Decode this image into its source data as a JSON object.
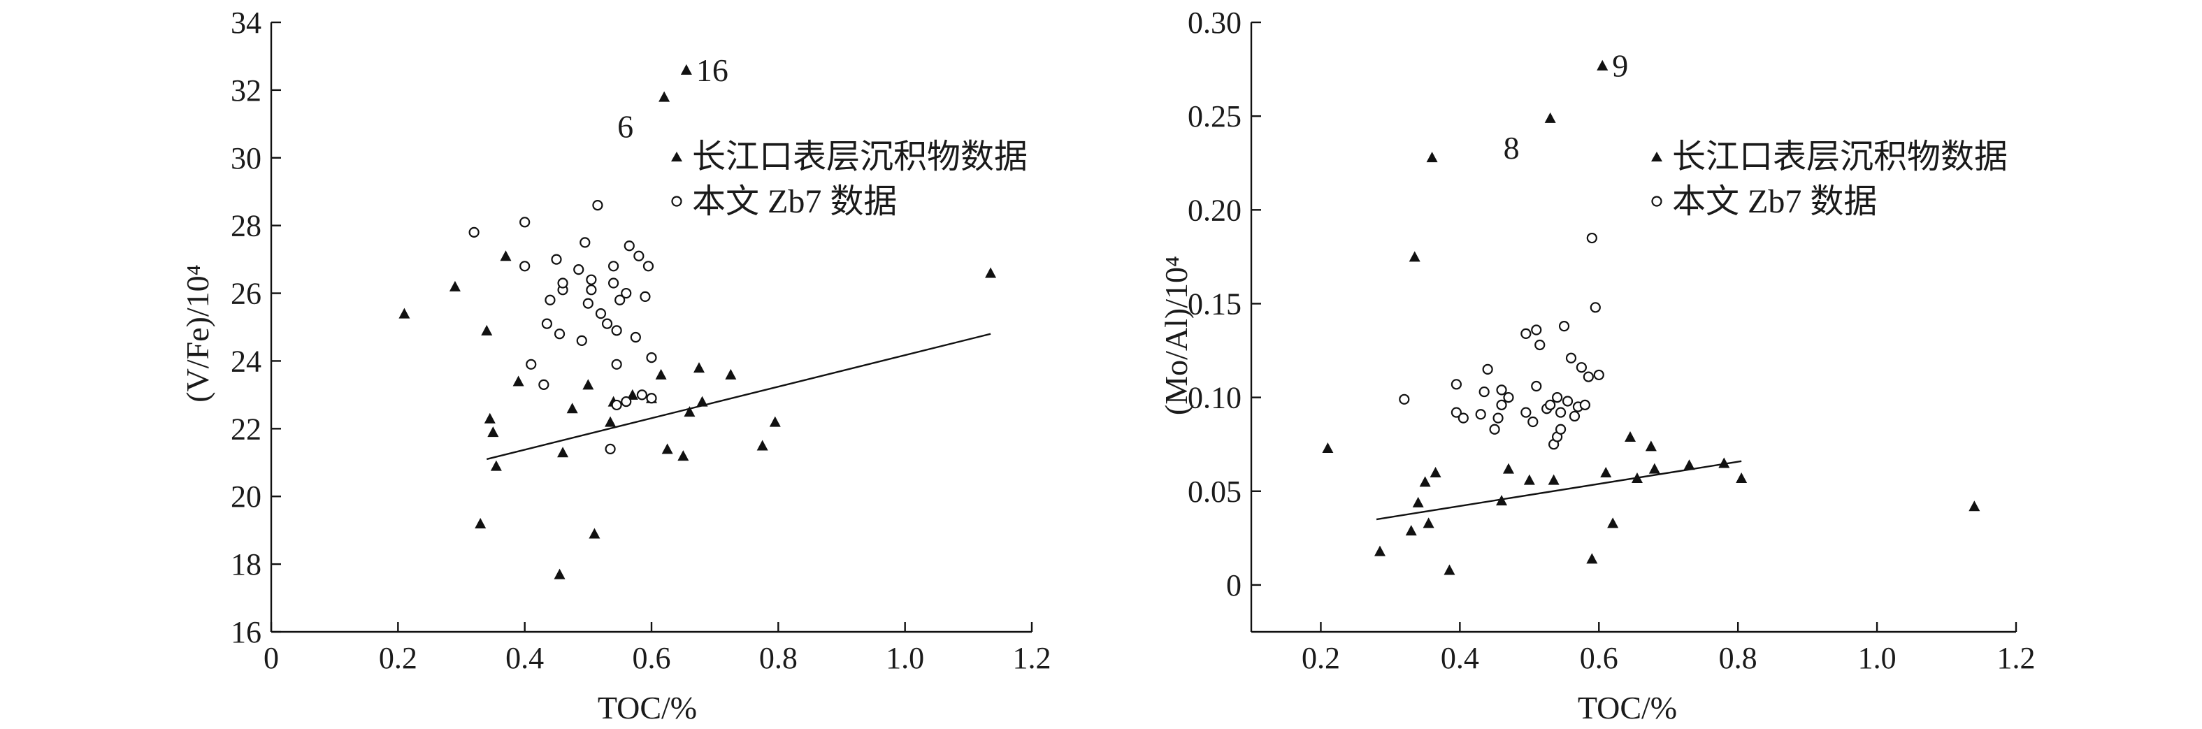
{
  "chart_data": [
    {
      "type": "scatter",
      "xlabel": "TOC/%",
      "ylabel": "(V/Fe)/10⁴",
      "xlim": [
        0,
        1.2
      ],
      "ylim": [
        16,
        34
      ],
      "xticks": [
        "0",
        "0.2",
        "0.4",
        "0.6",
        "0.8",
        "1.0",
        "1.2"
      ],
      "yticks": [
        "16",
        "18",
        "20",
        "22",
        "24",
        "26",
        "28",
        "30",
        "32",
        "34"
      ],
      "legend_position": "upper-right",
      "series": [
        {
          "name": "长江口表层沉积物数据",
          "marker": "filled-triangle",
          "points": [
            [
              0.21,
              25.4
            ],
            [
              0.29,
              26.2
            ],
            [
              0.33,
              19.2
            ],
            [
              0.34,
              24.9
            ],
            [
              0.345,
              22.3
            ],
            [
              0.35,
              21.9
            ],
            [
              0.355,
              20.9
            ],
            [
              0.37,
              27.1
            ],
            [
              0.39,
              23.4
            ],
            [
              0.455,
              17.7
            ],
            [
              0.46,
              21.3
            ],
            [
              0.475,
              22.6
            ],
            [
              0.5,
              23.3
            ],
            [
              0.51,
              18.9
            ],
            [
              0.535,
              22.2
            ],
            [
              0.54,
              22.8
            ],
            [
              0.57,
              23.0
            ],
            [
              0.6,
              22.9
            ],
            [
              0.615,
              23.6
            ],
            [
              0.62,
              31.8
            ],
            [
              0.625,
              21.4
            ],
            [
              0.65,
              21.2
            ],
            [
              0.655,
              32.6
            ],
            [
              0.66,
              22.5
            ],
            [
              0.675,
              23.8
            ],
            [
              0.68,
              22.8
            ],
            [
              0.725,
              23.6
            ],
            [
              0.775,
              21.5
            ],
            [
              0.795,
              22.2
            ],
            [
              1.135,
              26.6
            ]
          ]
        },
        {
          "name": "本文 Zb7 数据",
          "marker": "open-circle",
          "points": [
            [
              0.32,
              27.8
            ],
            [
              0.4,
              28.1
            ],
            [
              0.4,
              26.8
            ],
            [
              0.41,
              23.9
            ],
            [
              0.43,
              23.3
            ],
            [
              0.435,
              25.1
            ],
            [
              0.44,
              25.8
            ],
            [
              0.45,
              27.0
            ],
            [
              0.455,
              24.8
            ],
            [
              0.46,
              26.1
            ],
            [
              0.46,
              26.3
            ],
            [
              0.485,
              26.7
            ],
            [
              0.49,
              24.6
            ],
            [
              0.495,
              27.5
            ],
            [
              0.5,
              25.7
            ],
            [
              0.505,
              26.1
            ],
            [
              0.505,
              26.4
            ],
            [
              0.515,
              28.6
            ],
            [
              0.52,
              25.4
            ],
            [
              0.53,
              25.1
            ],
            [
              0.535,
              21.4
            ],
            [
              0.54,
              26.8
            ],
            [
              0.54,
              26.3
            ],
            [
              0.545,
              22.7
            ],
            [
              0.545,
              23.9
            ],
            [
              0.545,
              24.9
            ],
            [
              0.55,
              25.8
            ],
            [
              0.56,
              26.0
            ],
            [
              0.56,
              22.8
            ],
            [
              0.565,
              27.4
            ],
            [
              0.575,
              24.7
            ],
            [
              0.58,
              27.1
            ],
            [
              0.585,
              23.0
            ],
            [
              0.59,
              25.9
            ],
            [
              0.595,
              26.8
            ],
            [
              0.6,
              24.1
            ],
            [
              0.6,
              22.9
            ]
          ]
        }
      ],
      "trendline": {
        "x": [
          0.34,
          1.135
        ],
        "y": [
          21.1,
          24.8
        ]
      },
      "annotations": [
        {
          "text": "16",
          "x": 0.655,
          "y": 32.6
        },
        {
          "text": "6",
          "x": 0.62,
          "y": 31.8
        }
      ]
    },
    {
      "type": "scatter",
      "xlabel": "TOC/%",
      "ylabel": "(Mo/Al)/10⁴",
      "xlim": [
        0.1,
        1.2
      ],
      "ylim": [
        -0.025,
        0.3
      ],
      "xticks": [
        "0.2",
        "0.4",
        "0.6",
        "0.8",
        "1.0",
        "1.2"
      ],
      "yticks": [
        "0",
        "0.05",
        "0.10",
        "0.15",
        "0.20",
        "0.25",
        "0.30"
      ],
      "legend_position": "upper-right",
      "series": [
        {
          "name": "长江口表层沉积物数据",
          "marker": "filled-triangle",
          "points": [
            [
              0.21,
              0.073
            ],
            [
              0.285,
              0.018
            ],
            [
              0.33,
              0.029
            ],
            [
              0.335,
              0.175
            ],
            [
              0.34,
              0.044
            ],
            [
              0.35,
              0.055
            ],
            [
              0.355,
              0.033
            ],
            [
              0.36,
              0.228
            ],
            [
              0.365,
              0.06
            ],
            [
              0.385,
              0.008
            ],
            [
              0.46,
              0.045
            ],
            [
              0.47,
              0.062
            ],
            [
              0.5,
              0.056
            ],
            [
              0.53,
              0.249
            ],
            [
              0.535,
              0.056
            ],
            [
              0.59,
              0.014
            ],
            [
              0.605,
              0.277
            ],
            [
              0.61,
              0.06
            ],
            [
              0.62,
              0.033
            ],
            [
              0.645,
              0.079
            ],
            [
              0.655,
              0.057
            ],
            [
              0.675,
              0.074
            ],
            [
              0.68,
              0.062
            ],
            [
              0.73,
              0.064
            ],
            [
              0.78,
              0.065
            ],
            [
              0.805,
              0.057
            ],
            [
              1.14,
              0.042
            ]
          ]
        },
        {
          "name": "本文 Zb7 数据",
          "marker": "open-circle",
          "points": [
            [
              0.32,
              0.099
            ],
            [
              0.395,
              0.092
            ],
            [
              0.395,
              0.107
            ],
            [
              0.405,
              0.089
            ],
            [
              0.43,
              0.091
            ],
            [
              0.435,
              0.103
            ],
            [
              0.44,
              0.115
            ],
            [
              0.45,
              0.083
            ],
            [
              0.455,
              0.089
            ],
            [
              0.46,
              0.096
            ],
            [
              0.46,
              0.104
            ],
            [
              0.47,
              0.1
            ],
            [
              0.495,
              0.134
            ],
            [
              0.495,
              0.092
            ],
            [
              0.505,
              0.087
            ],
            [
              0.51,
              0.106
            ],
            [
              0.51,
              0.136
            ],
            [
              0.515,
              0.128
            ],
            [
              0.525,
              0.094
            ],
            [
              0.53,
              0.096
            ],
            [
              0.535,
              0.075
            ],
            [
              0.54,
              0.1
            ],
            [
              0.54,
              0.079
            ],
            [
              0.545,
              0.092
            ],
            [
              0.545,
              0.083
            ],
            [
              0.55,
              0.138
            ],
            [
              0.555,
              0.098
            ],
            [
              0.56,
              0.121
            ],
            [
              0.565,
              0.09
            ],
            [
              0.57,
              0.095
            ],
            [
              0.575,
              0.116
            ],
            [
              0.58,
              0.096
            ],
            [
              0.585,
              0.111
            ],
            [
              0.59,
              0.185
            ],
            [
              0.595,
              0.148
            ],
            [
              0.6,
              0.112
            ]
          ]
        }
      ],
      "trendline": {
        "x": [
          0.28,
          0.805
        ],
        "y": [
          0.035,
          0.066
        ]
      },
      "annotations": [
        {
          "text": "9",
          "x": 0.605,
          "y": 0.277
        },
        {
          "text": "8",
          "x": 0.53,
          "y": 0.249
        }
      ]
    }
  ]
}
